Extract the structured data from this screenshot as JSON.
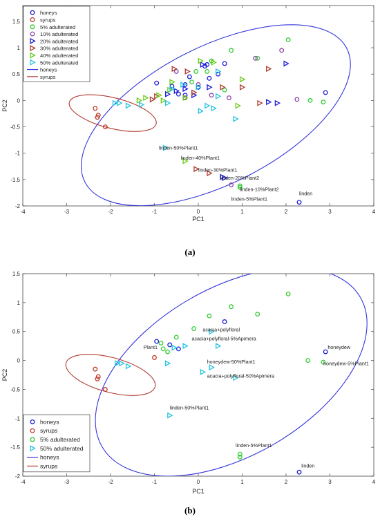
{
  "chart_data": [
    {
      "type": "scatter",
      "panel_label": "(a)",
      "xlabel": "PC1",
      "ylabel": "PC2",
      "xlim": [
        -4,
        4
      ],
      "ylim": [
        -2,
        1.8
      ],
      "xticks": [
        "-4",
        "-3",
        "-2",
        "-1",
        "0",
        "1",
        "2",
        "3",
        "4"
      ],
      "yticks": [
        "-2",
        "-1.5",
        "-1",
        "-0.5",
        "0",
        "0.5",
        "1",
        "1.5"
      ],
      "legend_position": "top-left",
      "legend": [
        {
          "label": "honeys",
          "marker": "circle",
          "color": "#1a1ad6"
        },
        {
          "label": "syrups",
          "marker": "circle",
          "color": "#c0392b"
        },
        {
          "label": "5% adulterated",
          "marker": "circle",
          "color": "#33cc33"
        },
        {
          "label": "10% adulterated",
          "marker": "circle",
          "color": "#8e44ad"
        },
        {
          "label": "20% adulterated",
          "marker": "tri-right",
          "color": "#1a1ad6"
        },
        {
          "label": "30% adulterated",
          "marker": "tri-right",
          "color": "#b03a2e"
        },
        {
          "label": "40% adulterated",
          "marker": "tri-right",
          "color": "#66cc11"
        },
        {
          "label": "50% adulterated",
          "marker": "tri-right",
          "color": "#22c4e0"
        },
        {
          "label": "honeys",
          "marker": "line",
          "color": "#3333dd"
        },
        {
          "label": "syrups",
          "marker": "line",
          "color": "#b03a2e"
        }
      ],
      "ellipses": [
        {
          "name": "honeys",
          "color": "#3333dd",
          "cx": 0.4,
          "cy": -0.28,
          "rx": 3.35,
          "ry": 1.3,
          "angle_deg": -27
        },
        {
          "name": "syrups",
          "color": "#b03a2e",
          "cx": -1.95,
          "cy": -0.24,
          "rx": 1.02,
          "ry": 0.29,
          "angle_deg": 14
        }
      ],
      "series": [
        {
          "name": "honeys",
          "marker": "circle",
          "color": "#1a1ad6",
          "points": [
            [
              -0.95,
              0.33
            ],
            [
              -0.6,
              0.27
            ],
            [
              -0.3,
              0.3
            ],
            [
              -0.2,
              0.45
            ],
            [
              0.15,
              0.65
            ],
            [
              0.2,
              0.68
            ],
            [
              0.45,
              0.5
            ],
            [
              -0.45,
              0.12
            ],
            [
              -0.3,
              0.1
            ],
            [
              0.0,
              0.25
            ],
            [
              0.25,
              0.42
            ],
            [
              0.6,
              0.7
            ],
            [
              2.9,
              0.15
            ],
            [
              2.3,
              -1.93
            ]
          ]
        },
        {
          "name": "syrups",
          "marker": "circle",
          "color": "#c0392b",
          "points": [
            [
              -2.35,
              -0.15
            ],
            [
              -2.28,
              -0.28
            ],
            [
              -2.3,
              -0.32
            ],
            [
              -2.12,
              -0.5
            ]
          ]
        },
        {
          "name": "5% adulterated",
          "marker": "circle",
          "color": "#33cc33",
          "points": [
            [
              -0.05,
              0.55
            ],
            [
              0.3,
              0.75
            ],
            [
              0.75,
              0.95
            ],
            [
              1.35,
              0.8
            ],
            [
              2.05,
              1.15
            ],
            [
              2.55,
              0.0
            ],
            [
              2.85,
              -0.03
            ],
            [
              0.2,
              0.55
            ],
            [
              -0.15,
              0.35
            ],
            [
              0.6,
              0.2
            ],
            [
              0.95,
              -1.65
            ],
            [
              0.95,
              -1.62
            ]
          ]
        },
        {
          "name": "10% adulterated",
          "marker": "circle",
          "color": "#8e44ad",
          "points": [
            [
              -0.5,
              0.55
            ],
            [
              0.0,
              0.3
            ],
            [
              0.3,
              0.1
            ],
            [
              1.3,
              0.8
            ],
            [
              1.9,
              0.95
            ],
            [
              2.25,
              0.02
            ],
            [
              0.7,
              0.05
            ],
            [
              0.75,
              -1.6
            ],
            [
              -0.3,
              0.05
            ]
          ]
        },
        {
          "name": "20% adulterated",
          "marker": "tri-right",
          "color": "#1a1ad6",
          "points": [
            [
              -0.7,
              0.12
            ],
            [
              -0.5,
              0.18
            ],
            [
              -0.3,
              0.22
            ],
            [
              0.1,
              0.68
            ],
            [
              1.6,
              -0.03
            ],
            [
              1.8,
              -0.05
            ],
            [
              2.0,
              0.7
            ],
            [
              0.55,
              -1.45
            ],
            [
              0.6,
              -1.47
            ],
            [
              0.25,
              0.25
            ],
            [
              -0.1,
              0.1
            ]
          ]
        },
        {
          "name": "30% adulterated",
          "marker": "tri-right",
          "color": "#b03a2e",
          "points": [
            [
              -1.05,
              0.02
            ],
            [
              -0.95,
              0.08
            ],
            [
              -0.55,
              0.6
            ],
            [
              -0.25,
              0.55
            ],
            [
              0.55,
              0.25
            ],
            [
              1.0,
              0.25
            ],
            [
              1.6,
              0.6
            ],
            [
              1.4,
              -0.05
            ],
            [
              -0.05,
              -1.3
            ],
            [
              0.25,
              -1.38
            ],
            [
              -0.1,
              0.15
            ]
          ]
        },
        {
          "name": "40% adulterated",
          "marker": "tri-right",
          "color": "#66cc11",
          "points": [
            [
              -1.35,
              0.0
            ],
            [
              -1.2,
              0.05
            ],
            [
              -0.9,
              0.1
            ],
            [
              -0.65,
              0.2
            ],
            [
              -0.6,
              0.35
            ],
            [
              -0.3,
              0.05
            ],
            [
              0.05,
              0.75
            ],
            [
              0.35,
              0.72
            ],
            [
              1.0,
              0.4
            ],
            [
              0.9,
              -0.1
            ],
            [
              -0.3,
              -1.15
            ],
            [
              -0.8,
              0.0
            ]
          ]
        },
        {
          "name": "50% adulterated",
          "marker": "tri-right",
          "color": "#22c4e0",
          "points": [
            [
              -1.9,
              -0.05
            ],
            [
              -1.8,
              -0.05
            ],
            [
              -1.6,
              -0.1
            ],
            [
              -1.3,
              -0.08
            ],
            [
              -0.7,
              -0.05
            ],
            [
              -0.6,
              0.22
            ],
            [
              -0.35,
              0.3
            ],
            [
              0.0,
              0.25
            ],
            [
              0.45,
              0.08
            ],
            [
              0.85,
              -0.35
            ],
            [
              0.2,
              -0.1
            ],
            [
              0.35,
              -0.15
            ],
            [
              0.05,
              -0.2
            ],
            [
              -0.75,
              -0.9
            ],
            [
              0.45,
              0.55
            ]
          ]
        }
      ],
      "annotations": [
        {
          "text": "linden-50%Plant1",
          "x": -0.9,
          "y": -0.93
        },
        {
          "text": "linden-40%Plant1",
          "x": -0.4,
          "y": -1.12
        },
        {
          "text": "linden-30%Plant1",
          "x": 0.0,
          "y": -1.35
        },
        {
          "text": "linden-20%Plant2",
          "x": 0.5,
          "y": -1.5
        },
        {
          "text": "linden-10%Plant2",
          "x": 0.95,
          "y": -1.72
        },
        {
          "text": "linden-5%Plant1",
          "x": 0.75,
          "y": -1.9
        },
        {
          "text": "linden",
          "x": 2.3,
          "y": -1.8
        }
      ]
    },
    {
      "type": "scatter",
      "panel_label": "(b)",
      "xlabel": "PC1",
      "ylabel": "PC2",
      "xlim": [
        -4,
        4
      ],
      "ylim": [
        -2,
        1.5
      ],
      "xticks": [
        "-4",
        "-3",
        "-2",
        "-1",
        "0",
        "1",
        "2",
        "3",
        "4"
      ],
      "yticks": [
        "-2",
        "-1.5",
        "-1",
        "-0.5",
        "0",
        "0.5",
        "1",
        "1.5"
      ],
      "legend_position": "bottom-left",
      "legend": [
        {
          "label": "honeys",
          "marker": "circle",
          "color": "#1a1ad6"
        },
        {
          "label": "syrups",
          "marker": "circle",
          "color": "#c0392b"
        },
        {
          "label": "5% adulterated",
          "marker": "circle",
          "color": "#33cc33"
        },
        {
          "label": "50% adulterated",
          "marker": "tri-right",
          "color": "#22c4e0"
        },
        {
          "label": "honeys",
          "marker": "line",
          "color": "#3333dd"
        },
        {
          "label": "syrups",
          "marker": "line",
          "color": "#b03a2e"
        }
      ],
      "ellipses": [
        {
          "name": "honeys",
          "color": "#3333dd",
          "cx": 0.75,
          "cy": -0.2,
          "rx": 3.4,
          "ry": 1.45,
          "angle_deg": -30
        },
        {
          "name": "syrups",
          "color": "#b03a2e",
          "cx": -2.0,
          "cy": -0.25,
          "rx": 1.05,
          "ry": 0.3,
          "angle_deg": 15
        }
      ],
      "series": [
        {
          "name": "honeys",
          "marker": "circle",
          "color": "#1a1ad6",
          "points": [
            [
              -0.95,
              0.33
            ],
            [
              -0.65,
              0.27
            ],
            [
              -0.45,
              0.2
            ],
            [
              0.6,
              0.67
            ],
            [
              2.9,
              0.15
            ],
            [
              2.3,
              -1.93
            ]
          ]
        },
        {
          "name": "syrups",
          "marker": "circle",
          "color": "#c0392b",
          "points": [
            [
              -2.35,
              -0.15
            ],
            [
              -2.28,
              -0.28
            ],
            [
              -2.3,
              -0.32
            ],
            [
              -2.12,
              -0.5
            ],
            [
              -1.0,
              0.05
            ]
          ]
        },
        {
          "name": "5% adulterated",
          "marker": "circle",
          "color": "#33cc33",
          "points": [
            [
              -0.8,
              0.2
            ],
            [
              -0.85,
              0.3
            ],
            [
              -0.7,
              0.15
            ],
            [
              -0.5,
              0.4
            ],
            [
              -0.1,
              0.55
            ],
            [
              0.25,
              0.77
            ],
            [
              0.75,
              0.93
            ],
            [
              1.35,
              0.8
            ],
            [
              2.05,
              1.15
            ],
            [
              2.5,
              0.0
            ],
            [
              2.85,
              -0.03
            ],
            [
              0.95,
              -1.62
            ],
            [
              0.95,
              -1.67
            ]
          ]
        },
        {
          "name": "50% adulterated",
          "marker": "tri-right",
          "color": "#22c4e0",
          "points": [
            [
              -1.85,
              -0.05
            ],
            [
              -1.75,
              -0.05
            ],
            [
              -1.6,
              -0.1
            ],
            [
              -0.7,
              -0.05
            ],
            [
              -0.55,
              0.22
            ],
            [
              -0.3,
              0.25
            ],
            [
              0.3,
              0.5
            ],
            [
              0.45,
              0.25
            ],
            [
              0.3,
              -0.12
            ],
            [
              0.1,
              -0.2
            ],
            [
              0.85,
              -0.3
            ],
            [
              -0.65,
              -0.95
            ]
          ]
        }
      ],
      "annotations": [
        {
          "text": "Plant1",
          "x": -1.25,
          "y": 0.2
        },
        {
          "text": "acacia+polyfloral",
          "x": 0.1,
          "y": 0.5
        },
        {
          "text": "acacia+polyfloral-5%Apimera",
          "x": -0.15,
          "y": 0.35
        },
        {
          "text": "honeydew",
          "x": 2.95,
          "y": 0.2
        },
        {
          "text": "honeydew-5%Plant1",
          "x": 2.85,
          "y": -0.08
        },
        {
          "text": "honeydew-50%Plant1",
          "x": 0.2,
          "y": -0.05
        },
        {
          "text": "acacia+polyfloral-50%Apimera",
          "x": 0.2,
          "y": -0.3
        },
        {
          "text": "linden-50%Plant1",
          "x": -0.65,
          "y": -0.85
        },
        {
          "text": "linden-5%Plant1",
          "x": 0.85,
          "y": -1.5
        },
        {
          "text": "linden",
          "x": 2.35,
          "y": -1.85
        }
      ]
    }
  ]
}
